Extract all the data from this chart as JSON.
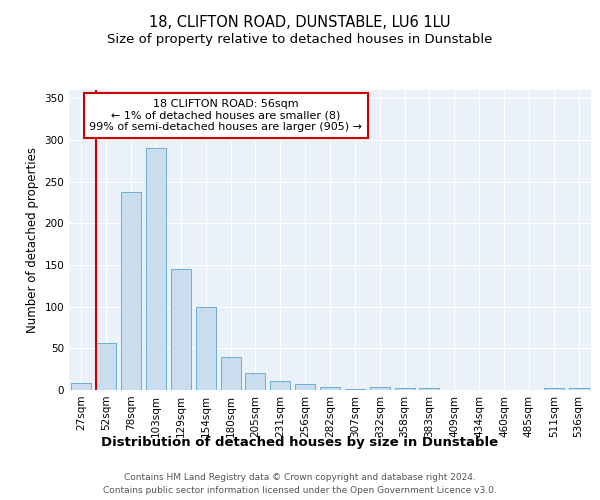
{
  "title": "18, CLIFTON ROAD, DUNSTABLE, LU6 1LU",
  "subtitle": "Size of property relative to detached houses in Dunstable",
  "xlabel": "Distribution of detached houses by size in Dunstable",
  "ylabel": "Number of detached properties",
  "categories": [
    "27sqm",
    "52sqm",
    "78sqm",
    "103sqm",
    "129sqm",
    "154sqm",
    "180sqm",
    "205sqm",
    "231sqm",
    "256sqm",
    "282sqm",
    "307sqm",
    "332sqm",
    "358sqm",
    "383sqm",
    "409sqm",
    "434sqm",
    "460sqm",
    "485sqm",
    "511sqm",
    "536sqm"
  ],
  "values": [
    8,
    57,
    238,
    290,
    145,
    100,
    40,
    20,
    11,
    7,
    4,
    1,
    4,
    2,
    2,
    0,
    0,
    0,
    0,
    2,
    2
  ],
  "bar_color": "#c9ddef",
  "bar_edge_color": "#6aaed6",
  "red_line_index": 1,
  "annotation_title": "18 CLIFTON ROAD: 56sqm",
  "annotation_line1": "← 1% of detached houses are smaller (8)",
  "annotation_line2": "99% of semi-detached houses are larger (905) →",
  "annotation_box_color": "#ffffff",
  "annotation_border_color": "#cc0000",
  "red_line_color": "#cc0000",
  "ylim": [
    0,
    360
  ],
  "yticks": [
    0,
    50,
    100,
    150,
    200,
    250,
    300,
    350
  ],
  "footer1": "Contains HM Land Registry data © Crown copyright and database right 2024.",
  "footer2": "Contains public sector information licensed under the Open Government Licence v3.0.",
  "title_fontsize": 10.5,
  "subtitle_fontsize": 9.5,
  "xlabel_fontsize": 9.5,
  "ylabel_fontsize": 8.5,
  "tick_fontsize": 7.5,
  "annotation_fontsize": 8,
  "footer_fontsize": 6.5,
  "bg_color": "#eaf1f8"
}
